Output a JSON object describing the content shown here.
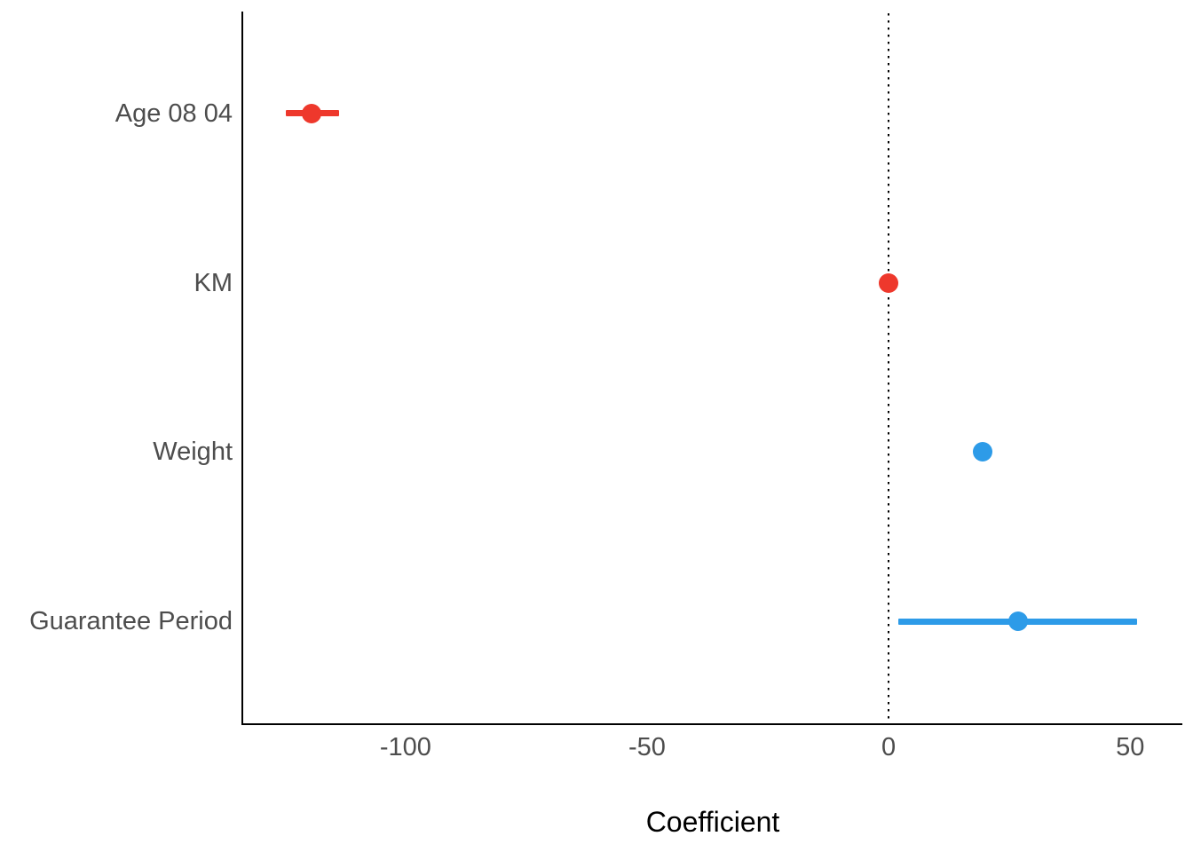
{
  "figure": {
    "background": "#ffffff",
    "axis_line_color": "#000000",
    "tick_label_color": "#4d4d4d",
    "axis_title_color": "#000000",
    "color_negative": "#ee382c",
    "color_positive": "#2d9be8"
  },
  "chart_data": {
    "type": "scatter",
    "subtype": "coefficient-forest-plot",
    "orientation": "horizontal",
    "title": "",
    "xlabel": "Coefficient",
    "ylabel": "",
    "xlim": [
      -133.6,
      60.8
    ],
    "x_ticks": [
      -100,
      -50,
      0,
      50
    ],
    "x_tick_labels": [
      "-100",
      "-50",
      "0",
      "50"
    ],
    "reference_line_x": 0,
    "reference_line_style": "dotted",
    "grid": false,
    "legend": false,
    "categories": [
      "Age 08 04",
      "KM",
      "Weight",
      "Guarantee Period"
    ],
    "points": [
      {
        "label": "Age 08 04",
        "estimate": -119.5,
        "ci_low": -124.7,
        "ci_high": -113.8,
        "color": "#ee382c"
      },
      {
        "label": "KM",
        "estimate": -0.02,
        "ci_low": -0.03,
        "ci_high": -0.01,
        "color": "#ee382c"
      },
      {
        "label": "Weight",
        "estimate": 19.5,
        "ci_low": 18.3,
        "ci_high": 20.7,
        "color": "#2d9be8"
      },
      {
        "label": "Guarantee Period",
        "estimate": 26.8,
        "ci_low": 2.0,
        "ci_high": 51.5,
        "color": "#2d9be8"
      }
    ]
  }
}
